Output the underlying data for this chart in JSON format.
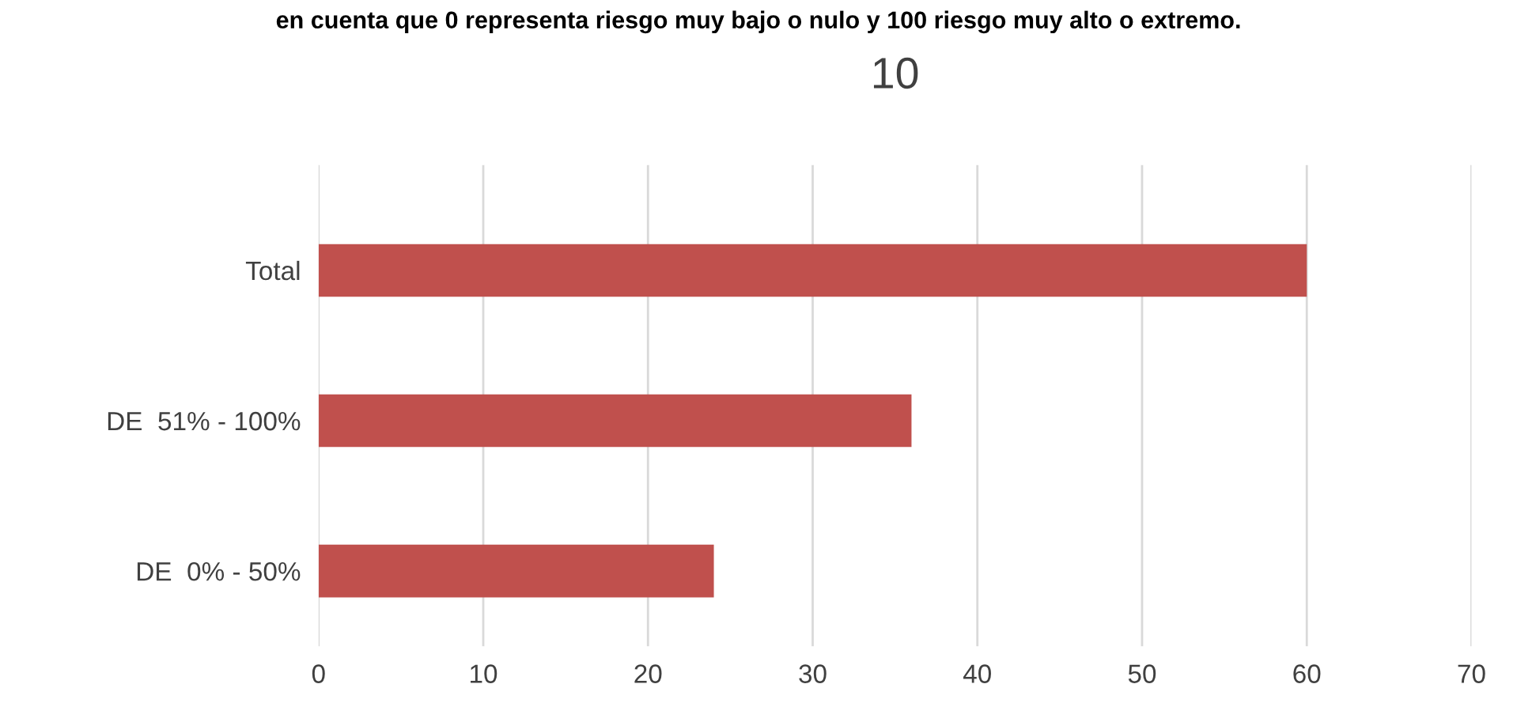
{
  "chart_data": {
    "type": "bar",
    "orientation": "horizontal",
    "title": "10",
    "annotations": [
      "en cuenta que 0 representa riesgo muy bajo o nulo y 100 riesgo muy alto o extremo."
    ],
    "categories": [
      "Total",
      "DE  51% - 100%",
      "DE  0% - 50%"
    ],
    "values": [
      60,
      36,
      24
    ],
    "color": "#c0504d",
    "xlim": [
      0,
      70
    ],
    "xticks": [
      0,
      10,
      20,
      30,
      40,
      50,
      60,
      70
    ],
    "grid": "x"
  }
}
